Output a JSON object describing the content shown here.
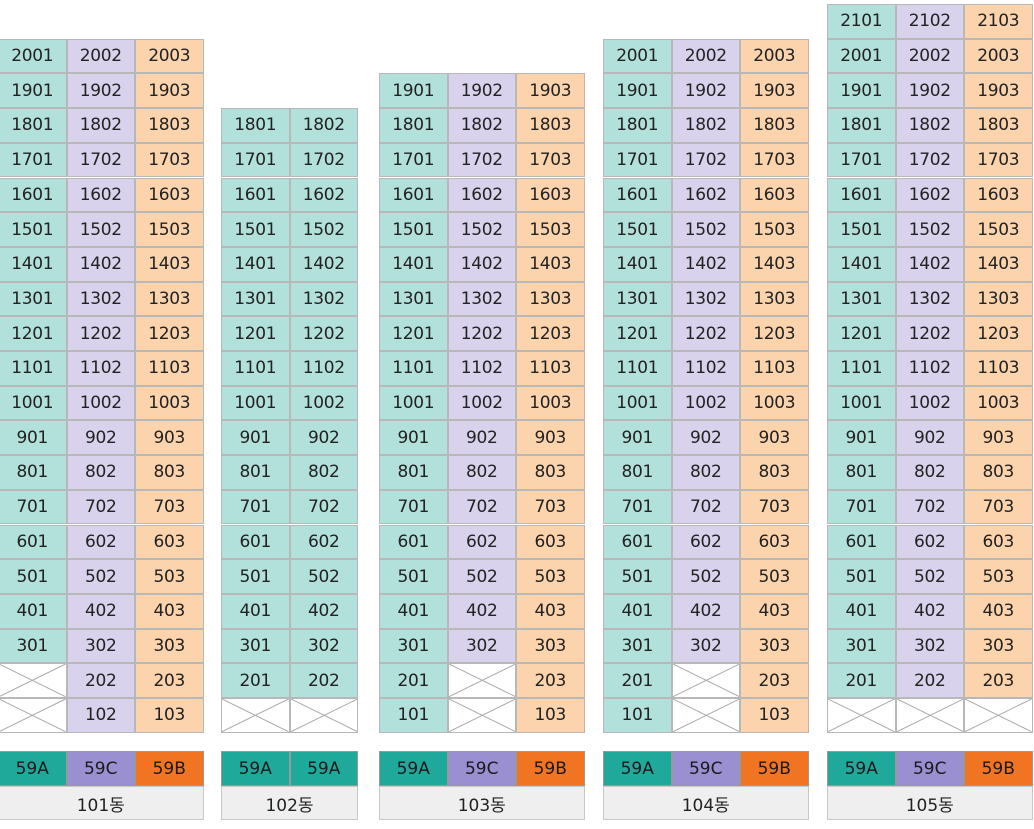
{
  "colors": {
    "59A_cell": "#b2e0db",
    "59C_cell": "#d8d2ec",
    "59B_cell": "#fbd3ac",
    "59A_tag": "#1fa99a",
    "59C_tag": "#9a8fd0",
    "59B_tag": "#f07422",
    "label_bg": "#efefef"
  },
  "buildings": [
    {
      "name": "101동",
      "lines": [
        {
          "type": "59A",
          "units": [
            "2001",
            "1901",
            "1801",
            "1701",
            "1601",
            "1501",
            "1401",
            "1301",
            "1201",
            "1101",
            "1001",
            "901",
            "801",
            "701",
            "601",
            "501",
            "401",
            "301",
            null,
            null
          ]
        },
        {
          "type": "59C",
          "units": [
            "2002",
            "1902",
            "1802",
            "1702",
            "1602",
            "1502",
            "1402",
            "1302",
            "1202",
            "1102",
            "1002",
            "902",
            "802",
            "702",
            "602",
            "502",
            "402",
            "302",
            "202",
            "102"
          ]
        },
        {
          "type": "59B",
          "units": [
            "2003",
            "1903",
            "1803",
            "1703",
            "1603",
            "1503",
            "1403",
            "1303",
            "1203",
            "1103",
            "1003",
            "903",
            "803",
            "703",
            "603",
            "503",
            "403",
            "303",
            "203",
            "103"
          ]
        }
      ]
    },
    {
      "name": "102동",
      "lines": [
        {
          "type": "59A",
          "units": [
            "1801",
            "1701",
            "1601",
            "1501",
            "1401",
            "1301",
            "1201",
            "1101",
            "1001",
            "901",
            "801",
            "701",
            "601",
            "501",
            "401",
            "301",
            "201",
            null
          ]
        },
        {
          "type": "59A",
          "units": [
            "1802",
            "1702",
            "1602",
            "1502",
            "1402",
            "1302",
            "1202",
            "1102",
            "1002",
            "902",
            "802",
            "702",
            "602",
            "502",
            "402",
            "302",
            "202",
            null
          ]
        }
      ]
    },
    {
      "name": "103동",
      "lines": [
        {
          "type": "59A",
          "units": [
            "1901",
            "1801",
            "1701",
            "1601",
            "1501",
            "1401",
            "1301",
            "1201",
            "1101",
            "1001",
            "901",
            "801",
            "701",
            "601",
            "501",
            "401",
            "301",
            "201",
            "101"
          ]
        },
        {
          "type": "59C",
          "units": [
            "1902",
            "1802",
            "1702",
            "1602",
            "1502",
            "1402",
            "1302",
            "1202",
            "1102",
            "1002",
            "902",
            "802",
            "702",
            "602",
            "502",
            "402",
            "302",
            null,
            null
          ]
        },
        {
          "type": "59B",
          "units": [
            "1903",
            "1803",
            "1703",
            "1603",
            "1503",
            "1403",
            "1303",
            "1203",
            "1103",
            "1003",
            "903",
            "803",
            "703",
            "603",
            "503",
            "403",
            "303",
            "203",
            "103"
          ]
        }
      ]
    },
    {
      "name": "104동",
      "lines": [
        {
          "type": "59A",
          "units": [
            "2001",
            "1901",
            "1801",
            "1701",
            "1601",
            "1501",
            "1401",
            "1301",
            "1201",
            "1101",
            "1001",
            "901",
            "801",
            "701",
            "601",
            "501",
            "401",
            "301",
            "201",
            "101"
          ]
        },
        {
          "type": "59C",
          "units": [
            "2002",
            "1902",
            "1802",
            "1702",
            "1602",
            "1502",
            "1402",
            "1302",
            "1202",
            "1102",
            "1002",
            "902",
            "802",
            "702",
            "602",
            "502",
            "402",
            "302",
            null,
            null
          ]
        },
        {
          "type": "59B",
          "units": [
            "2003",
            "1903",
            "1803",
            "1703",
            "1603",
            "1503",
            "1403",
            "1303",
            "1203",
            "1103",
            "1003",
            "903",
            "803",
            "703",
            "603",
            "503",
            "403",
            "303",
            "203",
            "103"
          ]
        }
      ]
    },
    {
      "name": "105동",
      "lines": [
        {
          "type": "59A",
          "units": [
            "2101",
            "2001",
            "1901",
            "1801",
            "1701",
            "1601",
            "1501",
            "1401",
            "1301",
            "1201",
            "1101",
            "1001",
            "901",
            "801",
            "701",
            "601",
            "501",
            "401",
            "301",
            "201",
            null
          ]
        },
        {
          "type": "59C",
          "units": [
            "2102",
            "2002",
            "1902",
            "1802",
            "1702",
            "1602",
            "1502",
            "1402",
            "1302",
            "1202",
            "1102",
            "1002",
            "902",
            "802",
            "702",
            "602",
            "502",
            "402",
            "302",
            "202",
            null
          ]
        },
        {
          "type": "59B",
          "units": [
            "2103",
            "2003",
            "1903",
            "1803",
            "1703",
            "1603",
            "1503",
            "1403",
            "1303",
            "1203",
            "1103",
            "1003",
            "903",
            "803",
            "703",
            "603",
            "503",
            "403",
            "303",
            "203",
            null
          ]
        }
      ]
    }
  ]
}
